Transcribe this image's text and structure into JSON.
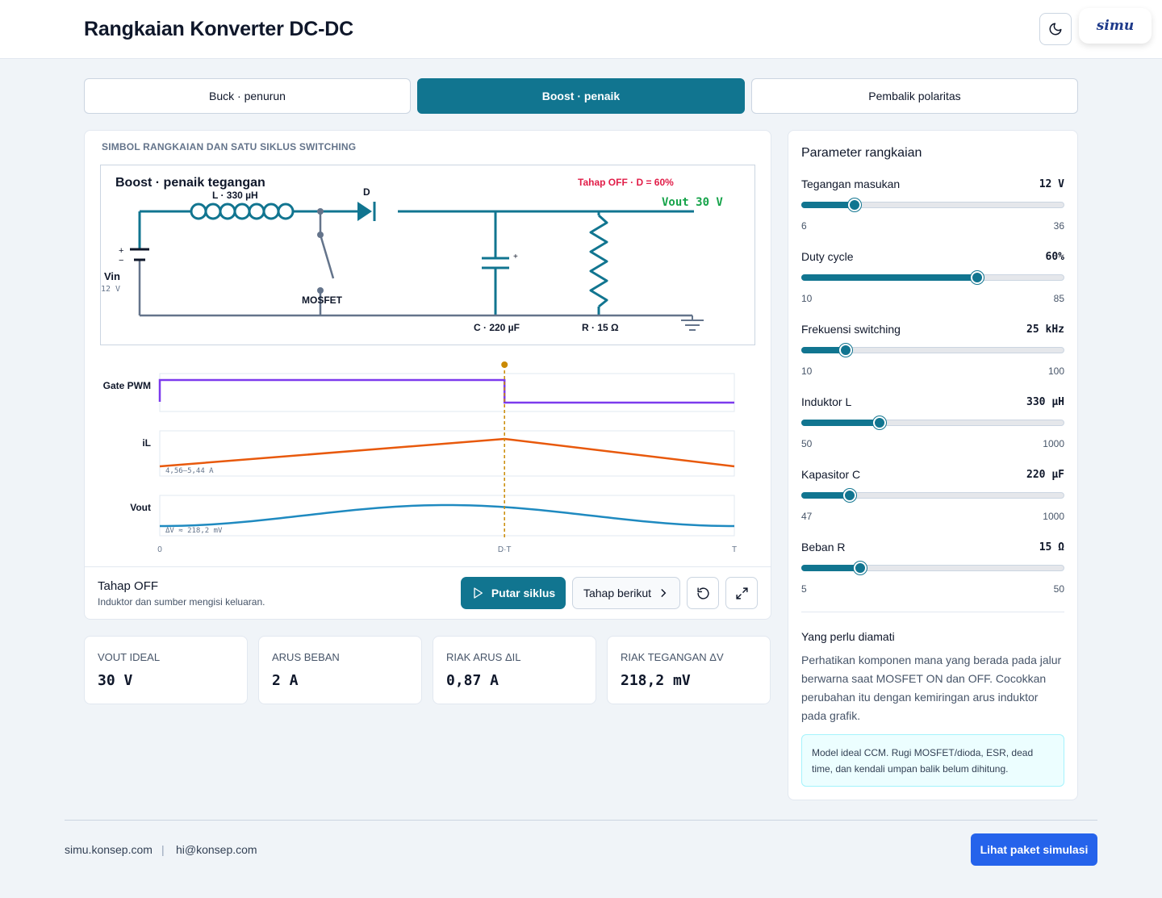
{
  "header": {
    "title": "Rangkaian Konverter DC-DC",
    "logo_text": "simu"
  },
  "tabs": [
    {
      "label": "Buck · penurun",
      "active": false
    },
    {
      "label": "Boost · penaik",
      "active": true
    },
    {
      "label": "Pembalik polaritas",
      "active": false
    }
  ],
  "circuit": {
    "section_title": "SIMBOL RANGKAIAN DAN SATU SIKLUS SWITCHING",
    "title": "Boost · penaik tegangan",
    "phase_label": "Tahap OFF · D = 60%",
    "vout_label": "Vout 30 V",
    "inductor_label": "L · 330 µH",
    "diode_label": "D",
    "vin_label": "Vin",
    "vin_value": "12 V",
    "mosfet_label": "MOSFET",
    "cap_label": "C · 220 µF",
    "res_label": "R · 15 Ω",
    "plus_sign": "+",
    "minus_sign": "−"
  },
  "waveforms": {
    "gate_label": "Gate PWM",
    "il_label": "iL",
    "il_range": "4,56–5,44 A",
    "vout_label": "Vout",
    "vout_ripple": "ΔV ≈ 218,2 mV",
    "axis_start": "0",
    "axis_mid": "D·T",
    "axis_end": "T",
    "duty": 0.6,
    "cursor_fraction": 0.6
  },
  "controls": {
    "phase_title": "Tahap OFF",
    "phase_desc": "Induktor dan sumber mengisi keluaran.",
    "play_label": "Putar siklus",
    "next_label": "Tahap berikut"
  },
  "metrics": [
    {
      "label": "VOUT IDEAL",
      "value": "30 V"
    },
    {
      "label": "ARUS BEBAN",
      "value": "2 A"
    },
    {
      "label": "RIAK ARUS ΔIL",
      "value": "0,87 A"
    },
    {
      "label": "RIAK TEGANGAN ΔV",
      "value": "218,2 mV"
    }
  ],
  "params": {
    "title": "Parameter rangkaian",
    "items": [
      {
        "label": "Tegangan masukan",
        "value": "12 V",
        "min": "6",
        "max": "36",
        "fraction": 0.2
      },
      {
        "label": "Duty cycle",
        "value": "60%",
        "min": "10",
        "max": "85",
        "fraction": 0.667
      },
      {
        "label": "Frekuensi switching",
        "value": "25 kHz",
        "min": "10",
        "max": "100",
        "fraction": 0.167
      },
      {
        "label": "Induktor L",
        "value": "330 µH",
        "min": "50",
        "max": "1000",
        "fraction": 0.295
      },
      {
        "label": "Kapasitor C",
        "value": "220 µF",
        "min": "47",
        "max": "1000",
        "fraction": 0.182
      },
      {
        "label": "Beban R",
        "value": "15 Ω",
        "min": "5",
        "max": "50",
        "fraction": 0.222
      }
    ],
    "obs_title": "Yang perlu diamati",
    "obs_text": "Perhatikan komponen mana yang berada pada jalur berwarna saat MOSFET ON dan OFF. Cocokkan perubahan itu dengan kemiringan arus induktor pada grafik.",
    "note": "Model ideal CCM. Rugi MOSFET/dioda, ESR, dead time, dan kendali umpan balik belum dihitung."
  },
  "footer": {
    "site": "simu.konsep.com",
    "separator": "|",
    "email": "hi@konsep.com",
    "cta": "Lihat paket simulasi"
  },
  "colors": {
    "accent": "#117590",
    "gate": "#7c3aed",
    "il": "#e8590c",
    "vout": "#1f8ac0",
    "cursor": "#ca8a04",
    "phase": "#e11d48",
    "vout_text": "#16a34a"
  }
}
